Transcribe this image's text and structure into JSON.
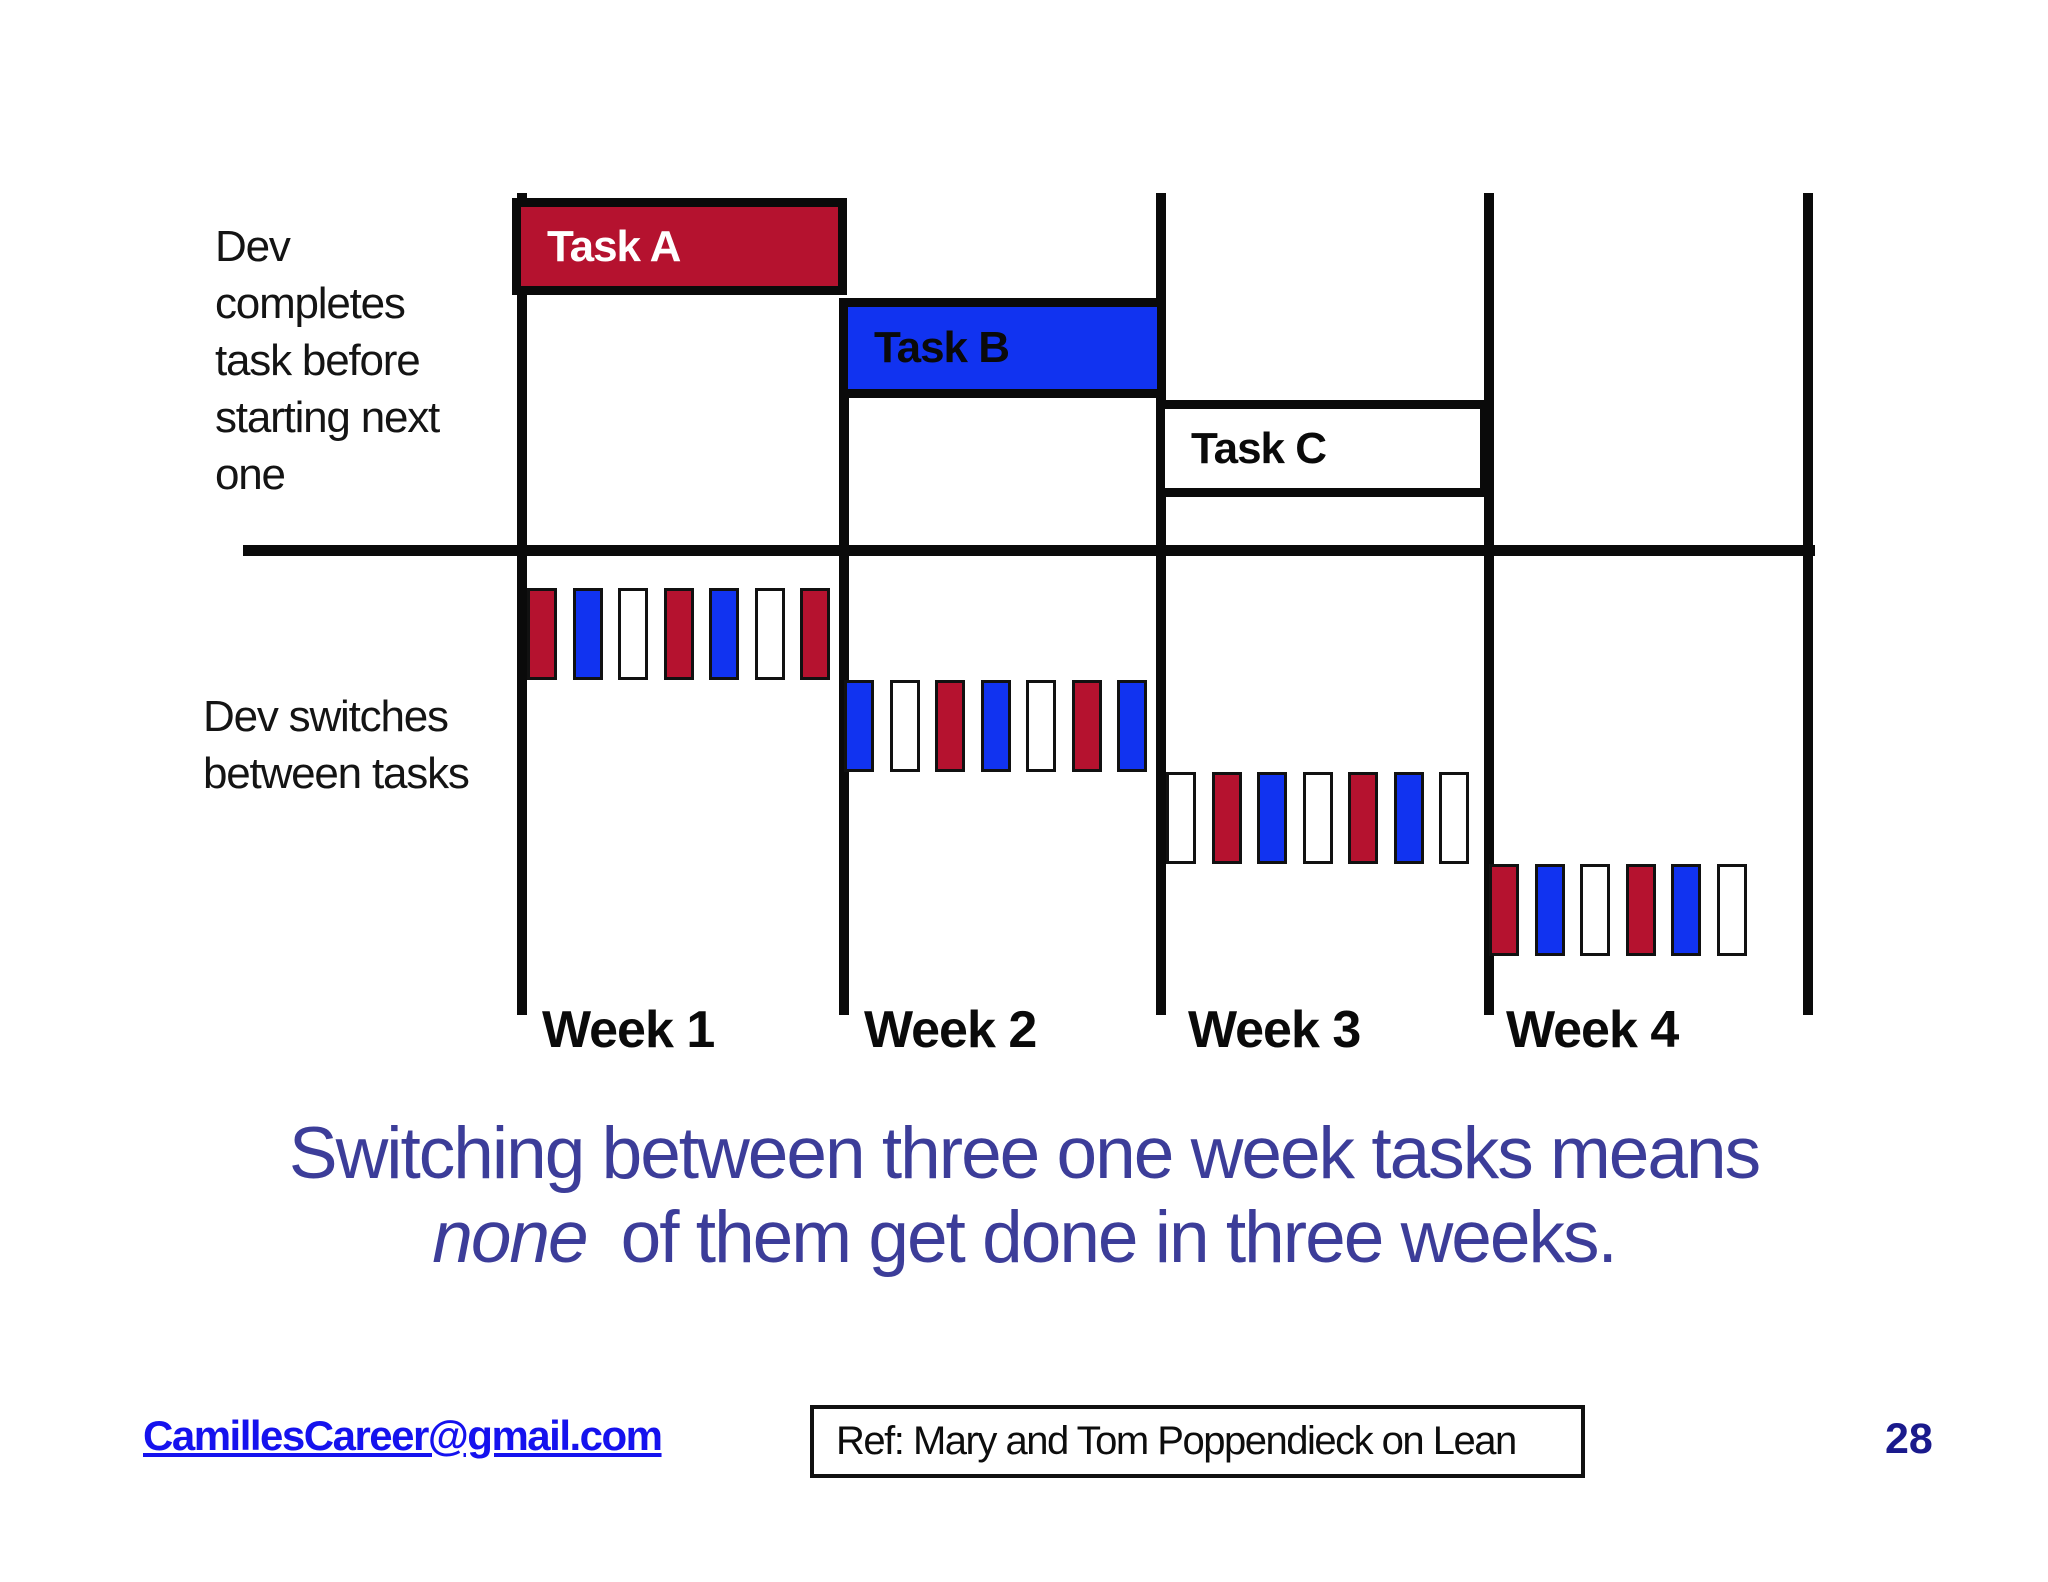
{
  "notes": {
    "dev_completes": {
      "lines": [
        "Dev",
        "completes",
        "task before",
        "starting next",
        "one"
      ]
    },
    "dev_switches": {
      "lines": [
        "Dev switches",
        "between tasks"
      ]
    }
  },
  "tasks": [
    {
      "label": "Task A",
      "fill": "red",
      "text_color": "#ffffff"
    },
    {
      "label": "Task B",
      "fill": "blue",
      "text_color": "#0a0a0a"
    },
    {
      "label": "Task C",
      "fill": "white",
      "text_color": "#0a0a0a"
    }
  ],
  "weeks": [
    {
      "label": "Week 1",
      "bar_colors": [
        "red",
        "blue",
        "white",
        "red",
        "blue",
        "white",
        "red"
      ]
    },
    {
      "label": "Week 2",
      "bar_colors": [
        "blue",
        "white",
        "red",
        "blue",
        "white",
        "red",
        "blue"
      ]
    },
    {
      "label": "Week 3",
      "bar_colors": [
        "white",
        "red",
        "blue",
        "white",
        "red",
        "blue",
        "white"
      ]
    },
    {
      "label": "Week 4",
      "bar_colors": [
        "red",
        "blue",
        "white",
        "red",
        "blue",
        "white"
      ]
    }
  ],
  "headline": {
    "line1": "Switching between three one week tasks means",
    "line2_italic": "none",
    "line2_rest": "of them get done in three weeks."
  },
  "footer": {
    "email": "CamillesCareer@gmail.com",
    "reference": "Ref: Mary and Tom Poppendieck on Lean",
    "page_number": "28"
  },
  "colors": {
    "red": "#B5122F",
    "blue": "#1133F0",
    "white": "#FFFFFF",
    "headline": "#3C3D99",
    "email_link": "#1512EE",
    "page_number": "#1A1A8C",
    "line": "#0A0A0A"
  }
}
